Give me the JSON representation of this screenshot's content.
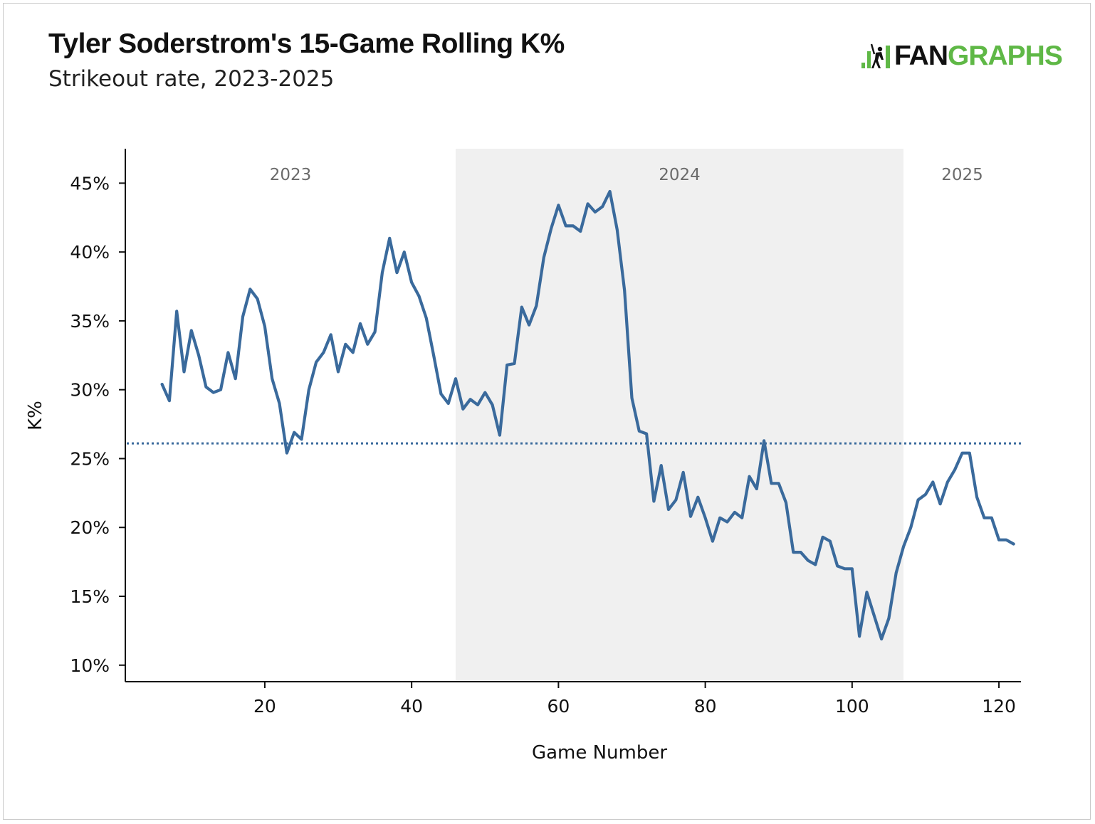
{
  "header": {
    "title": "Tyler Soderstrom's 15-Game Rolling K%",
    "subtitle": "Strikeout rate, 2023-2025"
  },
  "logo": {
    "fan": "FAN",
    "graphs": "GRAPHS",
    "colors": {
      "fan": "#111111",
      "graphs": "#5fb846"
    }
  },
  "chart_data": {
    "type": "line",
    "xlabel": "Game Number",
    "ylabel": "K%",
    "xlim": [
      1,
      123
    ],
    "ylim": [
      8.8,
      47.5
    ],
    "xticks": [
      20,
      40,
      60,
      80,
      100,
      120
    ],
    "yticks": [
      10,
      15,
      20,
      25,
      30,
      35,
      40,
      45
    ],
    "ytick_labels": [
      "10%",
      "15%",
      "20%",
      "25%",
      "30%",
      "35%",
      "40%",
      "45%"
    ],
    "grid": false,
    "line_color": "#3a6a9c",
    "season_bands": [
      {
        "label": "2023",
        "start": 1,
        "end": 46,
        "shaded": false
      },
      {
        "label": "2024",
        "start": 46,
        "end": 107,
        "shaded": true
      },
      {
        "label": "2025",
        "start": 107,
        "end": 123,
        "shaded": false
      }
    ],
    "band_color": "#f0f0f0",
    "reference_line": {
      "y": 26.1,
      "style": "dotted"
    },
    "x": [
      6,
      7,
      8,
      9,
      10,
      11,
      12,
      13,
      14,
      15,
      16,
      17,
      18,
      19,
      20,
      21,
      22,
      23,
      24,
      25,
      26,
      27,
      28,
      29,
      30,
      31,
      32,
      33,
      34,
      35,
      36,
      37,
      38,
      39,
      40,
      41,
      42,
      43,
      44,
      45,
      46,
      47,
      48,
      49,
      50,
      51,
      52,
      53,
      54,
      55,
      56,
      57,
      58,
      59,
      60,
      61,
      62,
      63,
      64,
      65,
      66,
      67,
      68,
      69,
      70,
      71,
      72,
      73,
      74,
      75,
      76,
      77,
      78,
      79,
      80,
      81,
      82,
      83,
      84,
      85,
      86,
      87,
      88,
      89,
      90,
      91,
      92,
      93,
      94,
      95,
      96,
      97,
      98,
      99,
      100,
      101,
      102,
      103,
      104,
      105,
      106,
      107,
      108,
      109,
      110,
      111,
      112,
      113,
      114,
      115,
      116,
      117,
      118,
      119,
      120,
      121,
      122
    ],
    "y": [
      30.4,
      29.2,
      35.7,
      31.3,
      34.3,
      32.5,
      30.2,
      29.8,
      30.0,
      32.7,
      30.8,
      35.3,
      37.3,
      36.6,
      34.6,
      30.8,
      29.0,
      25.4,
      26.9,
      26.4,
      30.0,
      32.0,
      32.7,
      34.0,
      31.3,
      33.3,
      32.7,
      34.8,
      33.3,
      34.2,
      38.5,
      41.0,
      38.5,
      40.0,
      37.8,
      36.8,
      35.2,
      32.5,
      29.7,
      29.0,
      30.8,
      28.6,
      29.3,
      28.9,
      29.8,
      28.9,
      26.7,
      31.8,
      31.9,
      36.0,
      34.7,
      36.1,
      39.6,
      41.7,
      43.4,
      41.9,
      41.9,
      41.5,
      43.5,
      42.9,
      43.3,
      44.4,
      41.6,
      37.2,
      29.4,
      27.0,
      26.8,
      21.9,
      24.5,
      21.3,
      22.0,
      24.0,
      20.8,
      22.2,
      20.7,
      19.0,
      20.7,
      20.4,
      21.1,
      20.7,
      23.7,
      22.8,
      26.3,
      23.2,
      23.2,
      21.8,
      18.2,
      18.2,
      17.6,
      17.3,
      19.3,
      19.0,
      17.2,
      17.0,
      17.0,
      12.1,
      15.3,
      13.6,
      11.9,
      13.4,
      16.7,
      18.6,
      20.0,
      22.0,
      22.4,
      23.3,
      21.7,
      23.3,
      24.2,
      25.4,
      25.4,
      22.2,
      20.7,
      20.7,
      19.1,
      19.1,
      18.8
    ]
  }
}
